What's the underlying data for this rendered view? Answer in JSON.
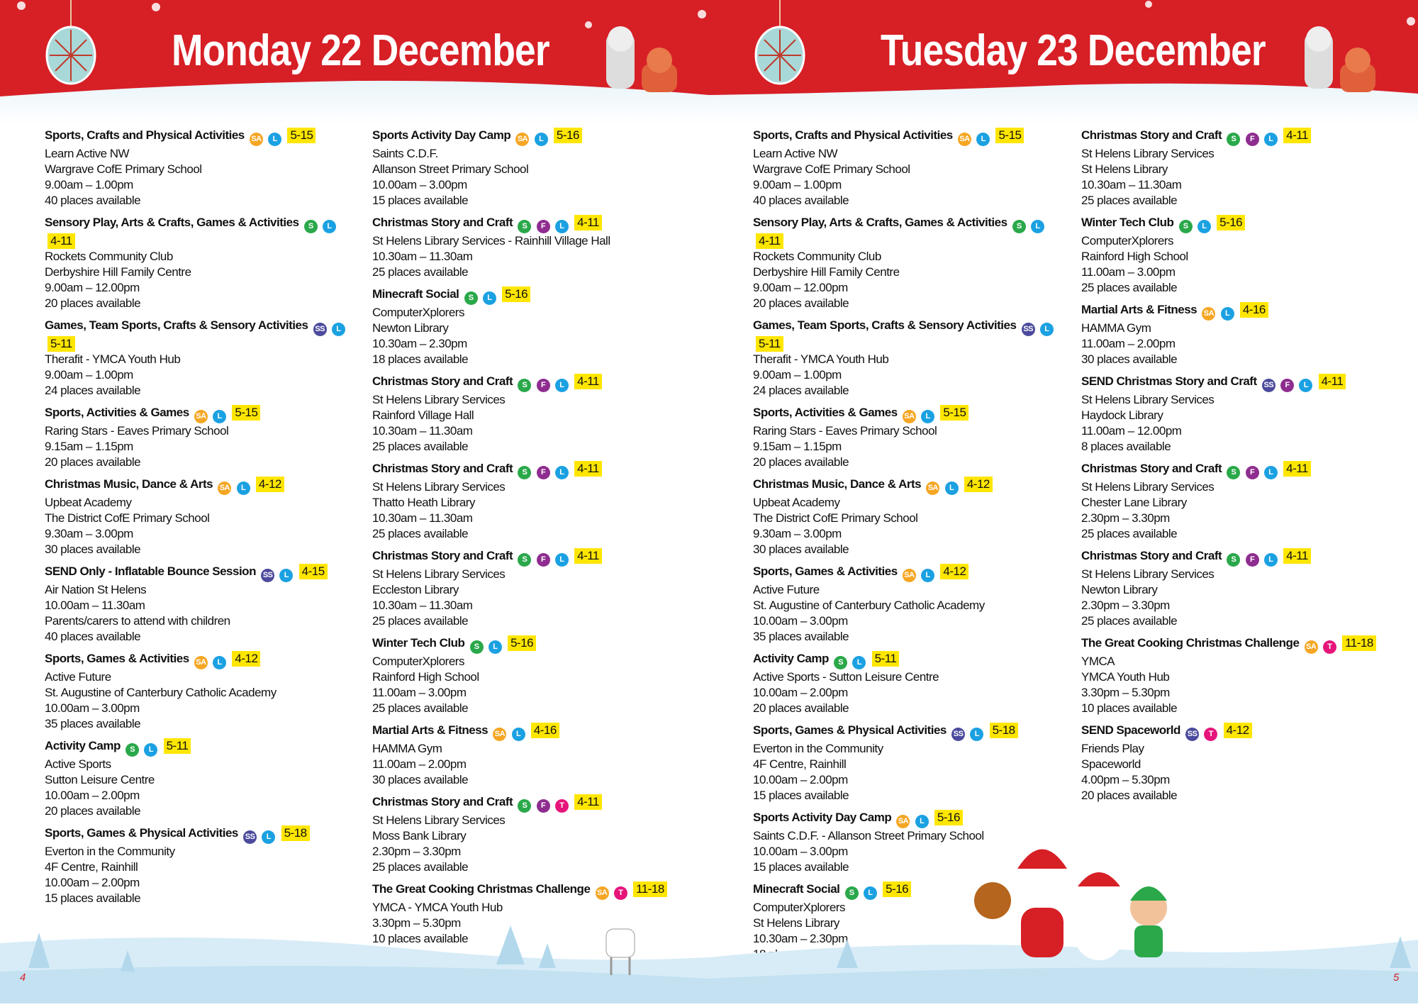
{
  "colors": {
    "header_red": "#d71f26",
    "age_highlight": "#ffe600",
    "snow": "#cfe8f5",
    "badges": {
      "SA": "#f5a623",
      "L": "#1ba1e2",
      "S": "#2aa84a",
      "SS": "#4b4a9c",
      "F": "#8e2d8f",
      "T": "#e5157a"
    }
  },
  "pages": [
    {
      "title": "Monday 22 December",
      "page_number": "4"
    },
    {
      "title": "Tuesday 23 December",
      "page_number": "5"
    }
  ],
  "columns": [
    [
      {
        "title": "Sports, Crafts and Physical Activities",
        "badges": [
          "SA",
          "L"
        ],
        "age": "5-15",
        "lines": [
          "Learn Active NW",
          "Wargrave CofE Primary School",
          "9.00am – 1.00pm",
          "40 places available"
        ]
      },
      {
        "title": "Sensory Play, Arts & Crafts, Games & Activities",
        "badges": [
          "S",
          "L"
        ],
        "age": "4-11",
        "lines": [
          "Rockets Community Club",
          "Derbyshire Hill Family Centre",
          "9.00am – 12.00pm",
          "20 places available"
        ]
      },
      {
        "title": "Games, Team Sports, Crafts & Sensory Activities",
        "badges": [
          "SS",
          "L"
        ],
        "age": "5-11",
        "lines": [
          "Therafit - YMCA Youth Hub",
          "9.00am – 1.00pm",
          "24 places available"
        ]
      },
      {
        "title": "Sports, Activities & Games",
        "badges": [
          "SA",
          "L"
        ],
        "age": "5-15",
        "lines": [
          "Raring Stars - Eaves Primary School",
          "9.15am – 1.15pm",
          "20 places available"
        ]
      },
      {
        "title": "Christmas Music, Dance & Arts",
        "badges": [
          "SA",
          "L"
        ],
        "age": "4-12",
        "lines": [
          "Upbeat Academy",
          "The District CofE Primary School",
          "9.30am – 3.00pm",
          "30 places available"
        ]
      },
      {
        "title": "SEND Only - Inflatable Bounce Session",
        "badges": [
          "SS",
          "L"
        ],
        "age": "4-15",
        "lines": [
          "Air Nation St Helens",
          "10.00am – 11.30am",
          "Parents/carers to attend with children",
          "40 places available"
        ]
      },
      {
        "title": "Sports, Games & Activities",
        "badges": [
          "SA",
          "L"
        ],
        "age": "4-12",
        "lines": [
          "Active Future",
          "St. Augustine of Canterbury Catholic Academy",
          "10.00am – 3.00pm",
          "35 places available"
        ]
      },
      {
        "title": "Activity Camp",
        "badges": [
          "S",
          "L"
        ],
        "age": "5-11",
        "lines": [
          "Active Sports",
          "Sutton Leisure Centre",
          "10.00am – 2.00pm",
          "20 places available"
        ]
      },
      {
        "title": "Sports, Games & Physical Activities",
        "badges": [
          "SS",
          "L"
        ],
        "age": "5-18",
        "lines": [
          "Everton in the Community",
          "4F Centre, Rainhill",
          "10.00am – 2.00pm",
          "15 places available"
        ]
      }
    ],
    [
      {
        "title": "Sports Activity Day Camp",
        "badges": [
          "SA",
          "L"
        ],
        "age": "5-16",
        "lines": [
          "Saints C.D.F.",
          "Allanson Street Primary School",
          "10.00am – 3.00pm",
          "15 places available"
        ]
      },
      {
        "title": "Christmas Story and Craft",
        "badges": [
          "S",
          "F",
          "L"
        ],
        "age": "4-11",
        "lines": [
          "St Helens Library Services - Rainhill Village Hall",
          "10.30am – 11.30am",
          "25 places available"
        ]
      },
      {
        "title": "Minecraft Social",
        "badges": [
          "S",
          "L"
        ],
        "age": "5-16",
        "lines": [
          "ComputerXplorers",
          "Newton Library",
          "10.30am – 2.30pm",
          "18 places available"
        ]
      },
      {
        "title": "Christmas Story and Craft",
        "badges": [
          "S",
          "F",
          "L"
        ],
        "age": "4-11",
        "lines": [
          "St Helens Library Services",
          "Rainford Village Hall",
          "10.30am – 11.30am",
          "25 places available"
        ]
      },
      {
        "title": "Christmas Story and Craft",
        "badges": [
          "S",
          "F",
          "L"
        ],
        "age": "4-11",
        "lines": [
          "St Helens Library Services",
          "Thatto Heath Library",
          "10.30am – 11.30am",
          "25 places available"
        ]
      },
      {
        "title": "Christmas Story and Craft",
        "badges": [
          "S",
          "F",
          "L"
        ],
        "age": "4-11",
        "lines": [
          "St Helens Library Services",
          "Eccleston Library",
          "10.30am – 11.30am",
          "25 places available"
        ]
      },
      {
        "title": "Winter Tech Club",
        "badges": [
          "S",
          "L"
        ],
        "age": "5-16",
        "lines": [
          "ComputerXplorers",
          "Rainford High School",
          "11.00am – 3.00pm",
          "25 places available"
        ]
      },
      {
        "title": "Martial Arts & Fitness",
        "badges": [
          "SA",
          "L"
        ],
        "age": "4-16",
        "lines": [
          "HAMMA Gym",
          "11.00am – 2.00pm",
          "30 places available"
        ]
      },
      {
        "title": "Christmas Story and Craft",
        "badges": [
          "S",
          "F",
          "T"
        ],
        "age": "4-11",
        "lines": [
          "St Helens Library Services",
          "Moss Bank Library",
          "2.30pm – 3.30pm",
          "25 places available"
        ]
      },
      {
        "title": "The Great Cooking Christmas Challenge",
        "badges": [
          "SA",
          "T"
        ],
        "age": "11-18",
        "lines": [
          "YMCA - YMCA Youth Hub",
          "3.30pm – 5.30pm",
          "10 places available"
        ]
      }
    ],
    [
      {
        "title": "Sports, Crafts and Physical Activities",
        "badges": [
          "SA",
          "L"
        ],
        "age": "5-15",
        "lines": [
          "Learn Active NW",
          "Wargrave CofE Primary School",
          "9.00am – 1.00pm",
          "40 places available"
        ]
      },
      {
        "title": "Sensory Play, Arts & Crafts, Games & Activities",
        "badges": [
          "S",
          "L"
        ],
        "age": "4-11",
        "lines": [
          "Rockets Community Club",
          "Derbyshire Hill Family Centre",
          "9.00am – 12.00pm",
          "20 places available"
        ]
      },
      {
        "title": "Games, Team Sports, Crafts & Sensory Activities",
        "badges": [
          "SS",
          "L"
        ],
        "age": "5-11",
        "lines": [
          "Therafit - YMCA Youth Hub",
          "9.00am – 1.00pm",
          "24 places available"
        ]
      },
      {
        "title": "Sports, Activities & Games",
        "badges": [
          "SA",
          "L"
        ],
        "age": "5-15",
        "lines": [
          "Raring Stars - Eaves Primary School",
          "9.15am – 1.15pm",
          "20 places available"
        ]
      },
      {
        "title": "Christmas Music, Dance & Arts",
        "badges": [
          "SA",
          "L"
        ],
        "age": "4-12",
        "lines": [
          "Upbeat Academy",
          "The District CofE Primary School",
          "9.30am – 3.00pm",
          "30 places available"
        ]
      },
      {
        "title": "Sports, Games & Activities",
        "badges": [
          "SA",
          "L"
        ],
        "age": "4-12",
        "lines": [
          "Active Future",
          "St. Augustine of Canterbury Catholic Academy",
          "10.00am – 3.00pm",
          "35 places available"
        ]
      },
      {
        "title": "Activity Camp",
        "badges": [
          "S",
          "L"
        ],
        "age": "5-11",
        "lines": [
          "Active Sports - Sutton Leisure Centre",
          "10.00am – 2.00pm",
          "20 places available"
        ]
      },
      {
        "title": "Sports, Games & Physical Activities",
        "badges": [
          "SS",
          "L"
        ],
        "age": "5-18",
        "lines": [
          "Everton in the Community",
          "4F Centre, Rainhill",
          "10.00am – 2.00pm",
          "15 places available"
        ]
      },
      {
        "title": "Sports Activity Day Camp",
        "badges": [
          "SA",
          "L"
        ],
        "age": "5-16",
        "lines": [
          "Saints C.D.F.  - Allanson Street Primary School",
          "10.00am – 3.00pm",
          "15 places available"
        ]
      },
      {
        "title": "Minecraft Social",
        "badges": [
          "S",
          "L"
        ],
        "age": "5-16",
        "lines": [
          "ComputerXplorers",
          "St Helens Library",
          "10.30am – 2.30pm",
          "18 places available"
        ]
      }
    ],
    [
      {
        "title": "Christmas Story and Craft",
        "badges": [
          "S",
          "F",
          "L"
        ],
        "age": "4-11",
        "lines": [
          "St Helens Library Services",
          "St Helens Library",
          "10.30am – 11.30am",
          "25 places available"
        ]
      },
      {
        "title": "Winter Tech Club",
        "badges": [
          "S",
          "L"
        ],
        "age": "5-16",
        "lines": [
          "ComputerXplorers",
          "Rainford High School",
          "11.00am – 3.00pm",
          "25 places available"
        ]
      },
      {
        "title": "Martial Arts & Fitness",
        "badges": [
          "SA",
          "L"
        ],
        "age": "4-16",
        "lines": [
          "HAMMA Gym",
          "11.00am – 2.00pm",
          "30 places available"
        ]
      },
      {
        "title": "SEND Christmas Story and Craft",
        "badges": [
          "SS",
          "F",
          "L"
        ],
        "age": "4-11",
        "lines": [
          "St Helens Library Services",
          "Haydock Library",
          "11.00am – 12.00pm",
          "8 places available"
        ]
      },
      {
        "title": "Christmas Story and Craft",
        "badges": [
          "S",
          "F",
          "L"
        ],
        "age": "4-11",
        "lines": [
          "St Helens Library Services",
          "Chester Lane Library",
          "2.30pm – 3.30pm",
          "25 places available"
        ]
      },
      {
        "title": "Christmas Story and Craft",
        "badges": [
          "S",
          "F",
          "L"
        ],
        "age": "4-11",
        "lines": [
          "St Helens Library Services",
          "Newton Library",
          "2.30pm – 3.30pm",
          "25 places available"
        ]
      },
      {
        "title": "The Great Cooking Christmas Challenge",
        "badges": [
          "SA",
          "T"
        ],
        "age": "11-18",
        "lines": [
          "YMCA",
          "YMCA Youth Hub",
          "3.30pm – 5.30pm",
          "10 places available"
        ]
      },
      {
        "title": "SEND Spaceworld",
        "badges": [
          "SS",
          "T"
        ],
        "age": "4-12",
        "lines": [
          "Friends Play",
          "Spaceworld",
          "4.00pm – 5.30pm",
          "20 places available"
        ]
      }
    ]
  ]
}
